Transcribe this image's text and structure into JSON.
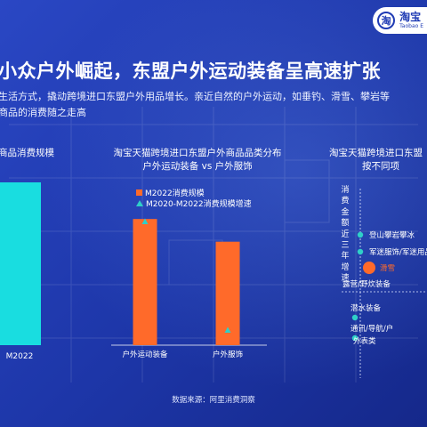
{
  "logo": {
    "badge": "淘",
    "name": "淘宝",
    "name_en": "Taobao E"
  },
  "headline": "小众户外崛起，东盟户外运动装备呈高速扩张",
  "subtitle_lines": [
    "生活方式，撬动跨境进口东盟户外用品增长。亲近自然的户外运动，如垂钓、滑雪、攀岩等",
    "商品的消费随之走高"
  ],
  "source": "数据来源：阿里消费洞察",
  "colors": {
    "background": "#1f3bb4",
    "bar_cyan": "#19dde0",
    "bar_orange": "#ff6a2a",
    "marker_teal": "#2fd0c8"
  },
  "chart_data": [
    {
      "type": "bar",
      "title": "商品消费规模",
      "categories": [
        "M2022"
      ],
      "values": [
        1.0
      ]
    },
    {
      "type": "bar",
      "title_lines": [
        "淘宝天猫跨境进口东盟户外商品品类分布",
        "户外运动装备 vs 户外服饰"
      ],
      "categories": [
        "户外运动装备",
        "户外服饰"
      ],
      "series": [
        {
          "name": "M2022消费规模",
          "values": [
            1.0,
            0.82
          ]
        },
        {
          "name": "M2020-M2022消费规模增速",
          "values": [
            0.98,
            0.12
          ]
        }
      ],
      "ylim": [
        0,
        1.1
      ]
    },
    {
      "type": "scatter",
      "title_lines": [
        "淘宝天猫跨境进口东盟",
        "按不同项"
      ],
      "ylabel": "消费金额近三年增速",
      "points": [
        {
          "label": "登山攀岩攀冰",
          "y": 0.8,
          "size": 3.2,
          "color": "#2fd0c8"
        },
        {
          "label": "军迷服饰/军迷用品",
          "y": 0.7,
          "size": 3.2,
          "color": "#2fd0c8"
        },
        {
          "label": "滑雪",
          "y": 0.63,
          "size": 7,
          "color": "#ff6a2a"
        },
        {
          "label": "露营/野炊装备",
          "y": 0.6,
          "size": 3.2,
          "color": "#2fd0c8"
        },
        {
          "label": "潜水装备",
          "y": 0.48,
          "size": 3.2,
          "color": "#2fd0c8"
        },
        {
          "label": "通讯/导航/户外表类",
          "y": 0.4,
          "size": 3.2,
          "color": "#2fd0c8"
        }
      ]
    }
  ]
}
